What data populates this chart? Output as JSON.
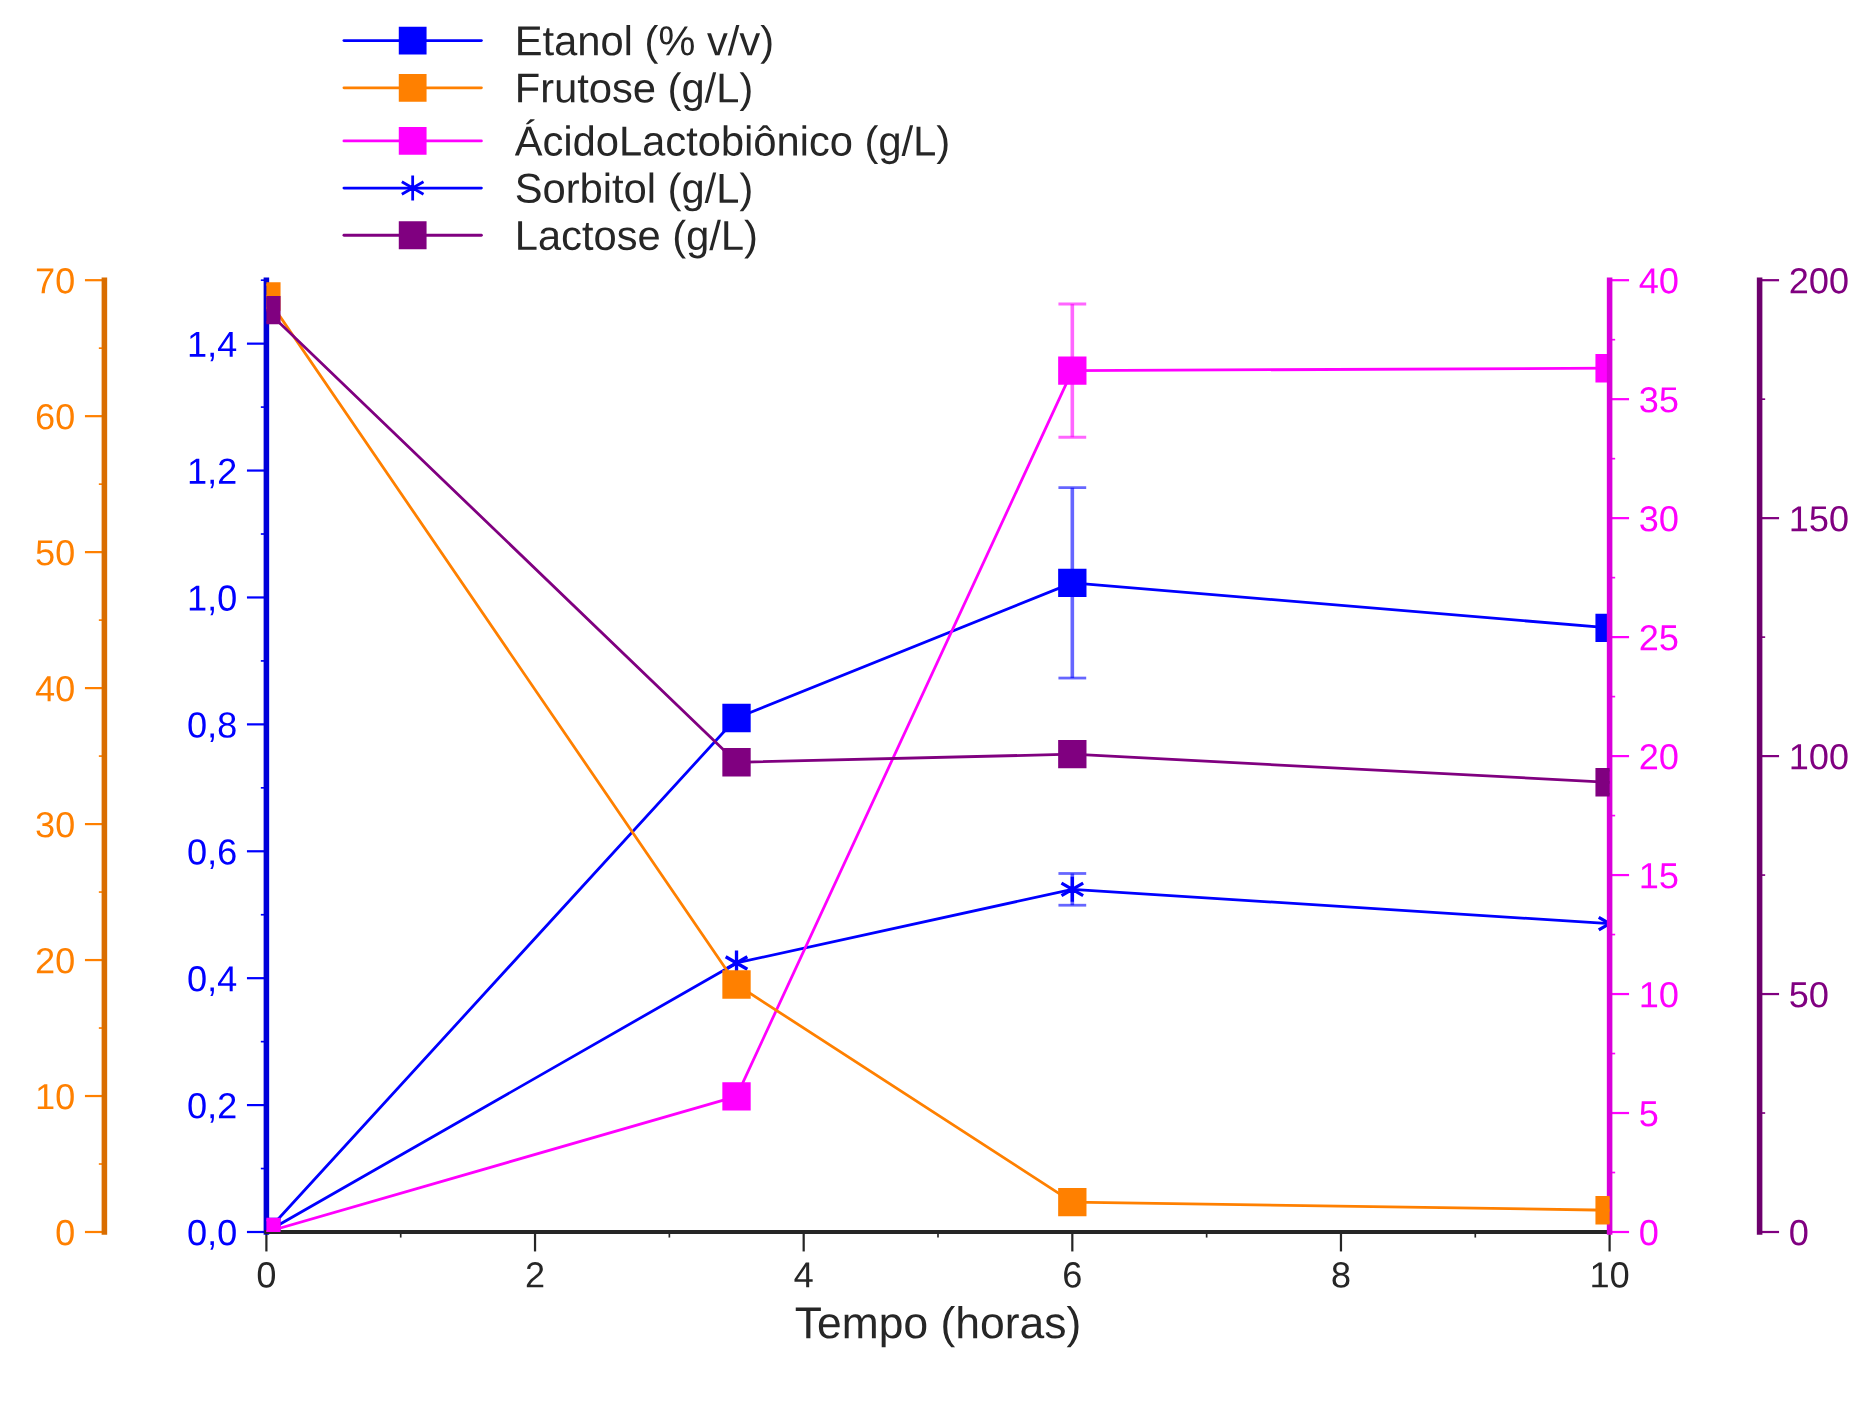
{
  "chart_data": [
    {
      "type": "line",
      "xlabel": "Tempo (horas)",
      "x": [
        0,
        3.5,
        6,
        10
      ],
      "series": [
        {
          "name": "Etanol (% v/v)",
          "color": "#0000ff",
          "marker": "square",
          "axis": "y",
          "values": [
            0,
            0.81,
            1.023,
            0.952
          ],
          "errors": [
            null,
            null,
            0.15,
            null
          ]
        },
        {
          "name": "Frutose (g/L)",
          "color": "#ff8000",
          "marker": "square",
          "axis": "y3",
          "values": [
            68.8,
            18.2,
            2.2,
            1.6
          ]
        },
        {
          "name": "ÁcidoLactobiônico (g/L)",
          "color": "#ff00ff",
          "marker": "square",
          "axis": "y2",
          "values": [
            0,
            5.7,
            36.2,
            36.3
          ],
          "errors": [
            null,
            null,
            2.8,
            null
          ]
        },
        {
          "name": "Sorbitol (g/L)",
          "color": "#0000ff",
          "marker": "cross",
          "axis": "y",
          "values": [
            0,
            0.424,
            0.54,
            0.486
          ],
          "errors": [
            null,
            null,
            0.025,
            null
          ]
        }
      ],
      "xlim": [
        0,
        10
      ],
      "xticks": [
        0,
        2,
        4,
        6,
        8,
        10
      ],
      "ylim": [
        0,
        1.5
      ],
      "yticks": [
        {
          "value": 0,
          "label": "0,0"
        },
        {
          "value": 0.2,
          "label": "0,2"
        },
        {
          "value": 0.4,
          "label": "0,4"
        },
        {
          "value": 0.6,
          "label": "0,6"
        },
        {
          "value": 0.8,
          "label": "0,8"
        },
        {
          "value": 1.0,
          "label": "1,0"
        },
        {
          "value": 1.2,
          "label": "1,2"
        },
        {
          "value": 1.4,
          "label": "1,4"
        }
      ],
      "y2lim": [
        0,
        40
      ],
      "y2ticks": [
        0,
        5,
        10,
        15,
        20,
        25,
        30,
        35,
        40
      ],
      "y3lim": [
        0,
        70
      ],
      "y3ticks": [
        0,
        10,
        20,
        30,
        40,
        50,
        60,
        70
      ],
      "grid": false,
      "legend": "top",
      "line_style": "solid"
    },
    {
      "type": "line",
      "x": [
        0,
        3.5,
        6,
        10
      ],
      "series": [
        {
          "name": "Lactose (g/L)",
          "color": "#800080",
          "marker": "square",
          "values": [
            193.7,
            98.7,
            100.4,
            94.5
          ]
        }
      ],
      "xlim": [
        0,
        10
      ],
      "ylim": [
        0,
        200
      ],
      "yticks": [
        0,
        50,
        100,
        150,
        200
      ],
      "tick_labels": "y",
      "grid": false,
      "legend": "top",
      "line_style": "solid"
    }
  ]
}
